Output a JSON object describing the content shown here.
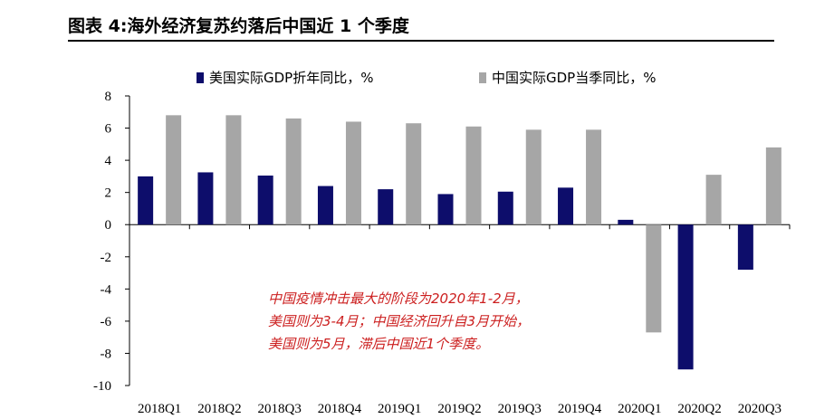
{
  "header": {
    "title": "图表 4:海外经济复苏约落后中国近 1 个季度"
  },
  "chart_data": {
    "type": "bar",
    "categories": [
      "2018Q1",
      "2018Q2",
      "2018Q3",
      "2018Q4",
      "2019Q1",
      "2019Q2",
      "2019Q3",
      "2019Q4",
      "2020Q1",
      "2020Q2",
      "2020Q3"
    ],
    "series": [
      {
        "name": "美国实际GDP折年同比，%",
        "color": "#0d0d6b",
        "values": [
          3.0,
          3.25,
          3.05,
          2.4,
          2.2,
          1.9,
          2.05,
          2.3,
          0.3,
          -9.0,
          -2.8
        ]
      },
      {
        "name": "中国实际GDP当季同比，%",
        "color": "#a6a6a6",
        "values": [
          6.8,
          6.8,
          6.6,
          6.4,
          6.3,
          6.1,
          5.9,
          5.9,
          -6.7,
          3.1,
          4.8
        ]
      }
    ],
    "ylim": [
      -10,
      8
    ],
    "yticks": [
      8,
      6,
      4,
      2,
      0,
      -2,
      -4,
      -6,
      -8,
      -10
    ],
    "legend_position": "top",
    "annotation": [
      "中国疫情冲击最大的阶段为2020年1-2月，",
      "美国则为3-4月；中国经济回升自3月开始，",
      "美国则为5月，滞后中国近1个季度。"
    ]
  }
}
